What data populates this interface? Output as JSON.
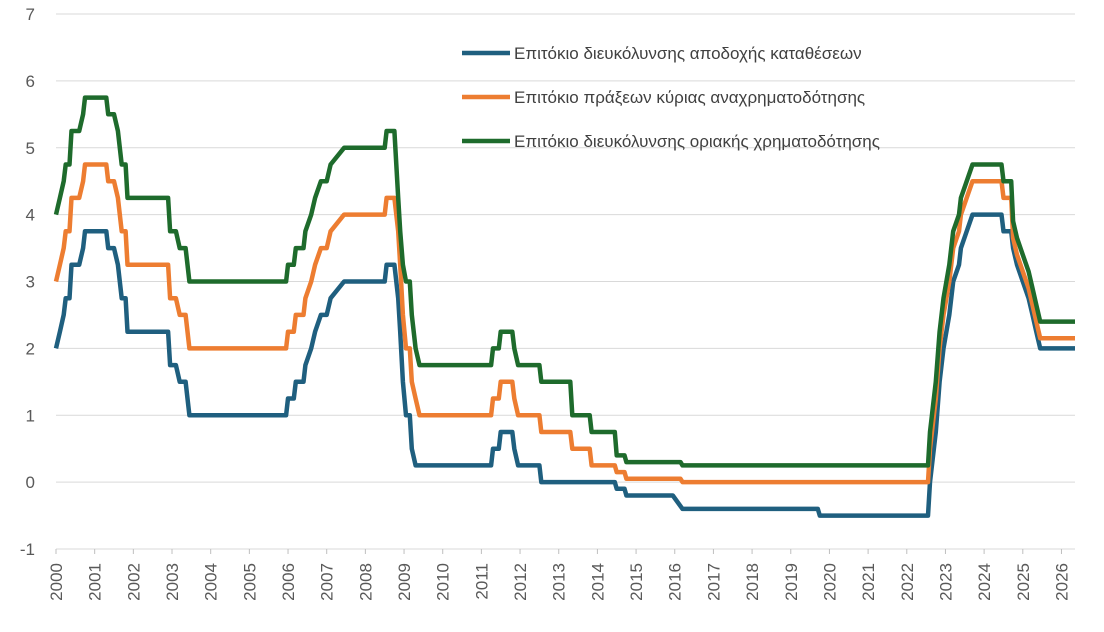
{
  "chart_data": {
    "type": "line",
    "title": "",
    "xlabel": "",
    "ylabel": "",
    "xlim": [
      2000,
      2026.35
    ],
    "ylim": [
      -1,
      7
    ],
    "grid": true,
    "legend_position": "top-right",
    "y_ticks": [
      "-1",
      "0",
      "1",
      "2",
      "3",
      "4",
      "5",
      "6",
      "7"
    ],
    "x_ticks": [
      "2000",
      "2001",
      "2002",
      "2003",
      "2004",
      "2005",
      "2006",
      "2007",
      "2008",
      "2009",
      "2010",
      "2011",
      "2012",
      "2013",
      "2014",
      "2015",
      "2016",
      "2017",
      "2018",
      "2019",
      "2020",
      "2021",
      "2022",
      "2023",
      "2024",
      "2025",
      "2026"
    ],
    "series": [
      {
        "name": "Επιτόκιο διευκόλυνσης αποδοχής καταθέσεων",
        "color": "#1f5f7f",
        "points": [
          [
            2000.0,
            2.0
          ],
          [
            2000.1,
            2.25
          ],
          [
            2000.2,
            2.5
          ],
          [
            2000.25,
            2.75
          ],
          [
            2000.35,
            2.75
          ],
          [
            2000.4,
            3.25
          ],
          [
            2000.6,
            3.25
          ],
          [
            2000.7,
            3.5
          ],
          [
            2000.75,
            3.75
          ],
          [
            2001.3,
            3.75
          ],
          [
            2001.35,
            3.5
          ],
          [
            2001.5,
            3.5
          ],
          [
            2001.6,
            3.25
          ],
          [
            2001.7,
            2.75
          ],
          [
            2001.8,
            2.75
          ],
          [
            2001.85,
            2.25
          ],
          [
            2002.9,
            2.25
          ],
          [
            2002.95,
            1.75
          ],
          [
            2003.1,
            1.75
          ],
          [
            2003.2,
            1.5
          ],
          [
            2003.35,
            1.5
          ],
          [
            2003.45,
            1.0
          ],
          [
            2005.95,
            1.0
          ],
          [
            2006.0,
            1.25
          ],
          [
            2006.15,
            1.25
          ],
          [
            2006.2,
            1.5
          ],
          [
            2006.4,
            1.5
          ],
          [
            2006.45,
            1.75
          ],
          [
            2006.6,
            2.0
          ],
          [
            2006.7,
            2.25
          ],
          [
            2006.85,
            2.5
          ],
          [
            2007.0,
            2.5
          ],
          [
            2007.1,
            2.75
          ],
          [
            2007.45,
            3.0
          ],
          [
            2008.5,
            3.0
          ],
          [
            2008.55,
            3.25
          ],
          [
            2008.75,
            3.25
          ],
          [
            2008.85,
            2.75
          ],
          [
            2008.9,
            2.25
          ],
          [
            2008.97,
            1.5
          ],
          [
            2009.05,
            1.0
          ],
          [
            2009.15,
            1.0
          ],
          [
            2009.2,
            0.5
          ],
          [
            2009.3,
            0.25
          ],
          [
            2011.25,
            0.25
          ],
          [
            2011.3,
            0.5
          ],
          [
            2011.45,
            0.5
          ],
          [
            2011.5,
            0.75
          ],
          [
            2011.8,
            0.75
          ],
          [
            2011.85,
            0.5
          ],
          [
            2011.95,
            0.25
          ],
          [
            2012.5,
            0.25
          ],
          [
            2012.55,
            0.0
          ],
          [
            2014.45,
            0.0
          ],
          [
            2014.5,
            -0.1
          ],
          [
            2014.7,
            -0.1
          ],
          [
            2014.75,
            -0.2
          ],
          [
            2015.95,
            -0.2
          ],
          [
            2016.2,
            -0.4
          ],
          [
            2019.7,
            -0.4
          ],
          [
            2019.75,
            -0.5
          ],
          [
            2022.55,
            -0.5
          ],
          [
            2022.6,
            0.0
          ],
          [
            2022.75,
            0.75
          ],
          [
            2022.85,
            1.5
          ],
          [
            2022.95,
            2.0
          ],
          [
            2023.1,
            2.5
          ],
          [
            2023.2,
            3.0
          ],
          [
            2023.35,
            3.25
          ],
          [
            2023.4,
            3.5
          ],
          [
            2023.55,
            3.75
          ],
          [
            2023.7,
            4.0
          ],
          [
            2024.45,
            4.0
          ],
          [
            2024.5,
            3.75
          ],
          [
            2024.7,
            3.75
          ],
          [
            2024.75,
            3.5
          ],
          [
            2024.85,
            3.25
          ],
          [
            2025.0,
            3.0
          ],
          [
            2025.15,
            2.75
          ],
          [
            2025.25,
            2.5
          ],
          [
            2025.35,
            2.25
          ],
          [
            2025.45,
            2.0
          ],
          [
            2026.35,
            2.0
          ]
        ]
      },
      {
        "name": "Επιτόκιο πράξεων κύριας αναχρηματοδότησης",
        "color": "#ed7d31",
        "points": [
          [
            2000.0,
            3.0
          ],
          [
            2000.1,
            3.25
          ],
          [
            2000.2,
            3.5
          ],
          [
            2000.25,
            3.75
          ],
          [
            2000.35,
            3.75
          ],
          [
            2000.4,
            4.25
          ],
          [
            2000.6,
            4.25
          ],
          [
            2000.7,
            4.5
          ],
          [
            2000.75,
            4.75
          ],
          [
            2001.3,
            4.75
          ],
          [
            2001.35,
            4.5
          ],
          [
            2001.5,
            4.5
          ],
          [
            2001.6,
            4.25
          ],
          [
            2001.7,
            3.75
          ],
          [
            2001.8,
            3.75
          ],
          [
            2001.85,
            3.25
          ],
          [
            2002.9,
            3.25
          ],
          [
            2002.95,
            2.75
          ],
          [
            2003.1,
            2.75
          ],
          [
            2003.2,
            2.5
          ],
          [
            2003.35,
            2.5
          ],
          [
            2003.45,
            2.0
          ],
          [
            2005.95,
            2.0
          ],
          [
            2006.0,
            2.25
          ],
          [
            2006.15,
            2.25
          ],
          [
            2006.2,
            2.5
          ],
          [
            2006.4,
            2.5
          ],
          [
            2006.45,
            2.75
          ],
          [
            2006.6,
            3.0
          ],
          [
            2006.7,
            3.25
          ],
          [
            2006.85,
            3.5
          ],
          [
            2007.0,
            3.5
          ],
          [
            2007.1,
            3.75
          ],
          [
            2007.45,
            4.0
          ],
          [
            2008.5,
            4.0
          ],
          [
            2008.55,
            4.25
          ],
          [
            2008.75,
            4.25
          ],
          [
            2008.85,
            3.75
          ],
          [
            2008.9,
            3.25
          ],
          [
            2008.97,
            2.5
          ],
          [
            2009.05,
            2.0
          ],
          [
            2009.15,
            2.0
          ],
          [
            2009.2,
            1.5
          ],
          [
            2009.3,
            1.25
          ],
          [
            2009.4,
            1.0
          ],
          [
            2011.25,
            1.0
          ],
          [
            2011.3,
            1.25
          ],
          [
            2011.45,
            1.25
          ],
          [
            2011.5,
            1.5
          ],
          [
            2011.8,
            1.5
          ],
          [
            2011.85,
            1.25
          ],
          [
            2011.95,
            1.0
          ],
          [
            2012.5,
            1.0
          ],
          [
            2012.55,
            0.75
          ],
          [
            2013.3,
            0.75
          ],
          [
            2013.35,
            0.5
          ],
          [
            2013.8,
            0.5
          ],
          [
            2013.85,
            0.25
          ],
          [
            2014.45,
            0.25
          ],
          [
            2014.5,
            0.15
          ],
          [
            2014.7,
            0.15
          ],
          [
            2014.75,
            0.05
          ],
          [
            2016.15,
            0.05
          ],
          [
            2016.2,
            0.0
          ],
          [
            2022.55,
            0.0
          ],
          [
            2022.6,
            0.5
          ],
          [
            2022.75,
            1.25
          ],
          [
            2022.85,
            2.0
          ],
          [
            2022.95,
            2.5
          ],
          [
            2023.1,
            3.0
          ],
          [
            2023.2,
            3.5
          ],
          [
            2023.35,
            3.75
          ],
          [
            2023.4,
            4.0
          ],
          [
            2023.55,
            4.25
          ],
          [
            2023.7,
            4.5
          ],
          [
            2024.45,
            4.5
          ],
          [
            2024.5,
            4.25
          ],
          [
            2024.7,
            4.25
          ],
          [
            2024.75,
            3.65
          ],
          [
            2024.85,
            3.4
          ],
          [
            2025.0,
            3.15
          ],
          [
            2025.15,
            2.9
          ],
          [
            2025.25,
            2.65
          ],
          [
            2025.35,
            2.4
          ],
          [
            2025.45,
            2.15
          ],
          [
            2026.35,
            2.15
          ]
        ]
      },
      {
        "name": "Επιτόκιο διευκόλυνσης οριακής χρηματοδότησης",
        "color": "#1e6b2c",
        "points": [
          [
            2000.0,
            4.0
          ],
          [
            2000.1,
            4.25
          ],
          [
            2000.2,
            4.5
          ],
          [
            2000.25,
            4.75
          ],
          [
            2000.35,
            4.75
          ],
          [
            2000.4,
            5.25
          ],
          [
            2000.6,
            5.25
          ],
          [
            2000.7,
            5.5
          ],
          [
            2000.75,
            5.75
          ],
          [
            2001.3,
            5.75
          ],
          [
            2001.35,
            5.5
          ],
          [
            2001.5,
            5.5
          ],
          [
            2001.6,
            5.25
          ],
          [
            2001.7,
            4.75
          ],
          [
            2001.8,
            4.75
          ],
          [
            2001.85,
            4.25
          ],
          [
            2002.9,
            4.25
          ],
          [
            2002.95,
            3.75
          ],
          [
            2003.1,
            3.75
          ],
          [
            2003.2,
            3.5
          ],
          [
            2003.35,
            3.5
          ],
          [
            2003.45,
            3.0
          ],
          [
            2005.95,
            3.0
          ],
          [
            2006.0,
            3.25
          ],
          [
            2006.15,
            3.25
          ],
          [
            2006.2,
            3.5
          ],
          [
            2006.4,
            3.5
          ],
          [
            2006.45,
            3.75
          ],
          [
            2006.6,
            4.0
          ],
          [
            2006.7,
            4.25
          ],
          [
            2006.85,
            4.5
          ],
          [
            2007.0,
            4.5
          ],
          [
            2007.1,
            4.75
          ],
          [
            2007.45,
            5.0
          ],
          [
            2008.5,
            5.0
          ],
          [
            2008.55,
            5.25
          ],
          [
            2008.75,
            5.25
          ],
          [
            2008.85,
            4.25
          ],
          [
            2008.9,
            3.75
          ],
          [
            2008.97,
            3.25
          ],
          [
            2009.05,
            3.0
          ],
          [
            2009.15,
            3.0
          ],
          [
            2009.2,
            2.5
          ],
          [
            2009.3,
            2.0
          ],
          [
            2009.4,
            1.75
          ],
          [
            2011.25,
            1.75
          ],
          [
            2011.3,
            2.0
          ],
          [
            2011.45,
            2.0
          ],
          [
            2011.5,
            2.25
          ],
          [
            2011.8,
            2.25
          ],
          [
            2011.85,
            2.0
          ],
          [
            2011.95,
            1.75
          ],
          [
            2012.5,
            1.75
          ],
          [
            2012.55,
            1.5
          ],
          [
            2013.3,
            1.5
          ],
          [
            2013.35,
            1.0
          ],
          [
            2013.8,
            1.0
          ],
          [
            2013.85,
            0.75
          ],
          [
            2014.45,
            0.75
          ],
          [
            2014.5,
            0.4
          ],
          [
            2014.7,
            0.4
          ],
          [
            2014.75,
            0.3
          ],
          [
            2016.15,
            0.3
          ],
          [
            2016.2,
            0.25
          ],
          [
            2022.55,
            0.25
          ],
          [
            2022.6,
            0.75
          ],
          [
            2022.75,
            1.5
          ],
          [
            2022.85,
            2.25
          ],
          [
            2022.95,
            2.75
          ],
          [
            2023.1,
            3.25
          ],
          [
            2023.2,
            3.75
          ],
          [
            2023.35,
            4.0
          ],
          [
            2023.4,
            4.25
          ],
          [
            2023.55,
            4.5
          ],
          [
            2023.7,
            4.75
          ],
          [
            2024.45,
            4.75
          ],
          [
            2024.5,
            4.5
          ],
          [
            2024.7,
            4.5
          ],
          [
            2024.75,
            3.9
          ],
          [
            2024.85,
            3.65
          ],
          [
            2025.0,
            3.4
          ],
          [
            2025.15,
            3.15
          ],
          [
            2025.25,
            2.9
          ],
          [
            2025.35,
            2.65
          ],
          [
            2025.45,
            2.4
          ],
          [
            2026.35,
            2.4
          ]
        ]
      }
    ]
  }
}
